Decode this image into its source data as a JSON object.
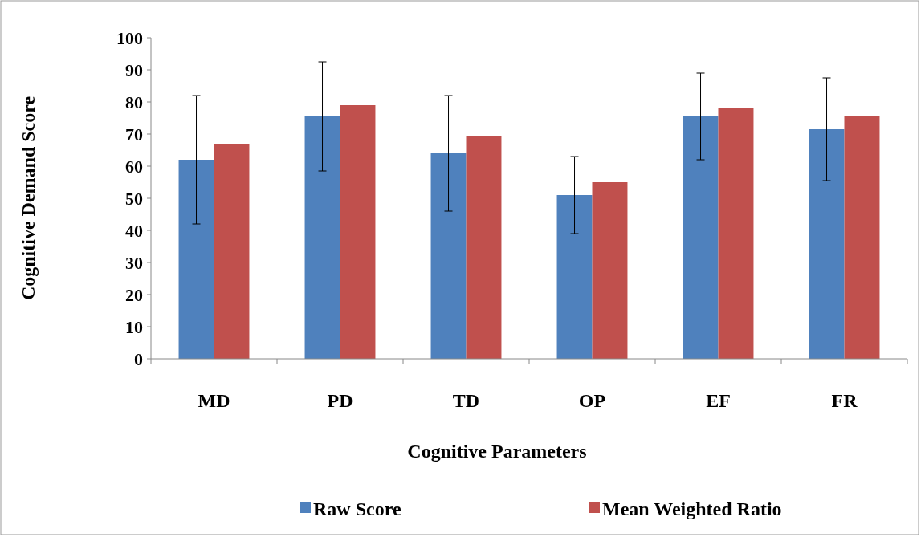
{
  "chart_data": {
    "type": "bar",
    "xlabel": "Cognitive Parameters",
    "ylabel": "Cognitive Demand Score",
    "categories": [
      "MD",
      "PD",
      "TD",
      "OP",
      "EF",
      "FR"
    ],
    "series": [
      {
        "name": "Raw Score",
        "color": "#4f81bd",
        "values": [
          62,
          75.5,
          64,
          51,
          75.5,
          71.5
        ],
        "errors": [
          20,
          17,
          18,
          12,
          13.5,
          16
        ]
      },
      {
        "name": "Mean Weighted Ratio",
        "color": "#c0504d",
        "values": [
          67,
          79,
          69.5,
          55,
          78,
          75.5
        ]
      }
    ],
    "ylim": [
      0,
      100
    ],
    "yticks": [
      0,
      10,
      20,
      30,
      40,
      50,
      60,
      70,
      80,
      90,
      100
    ],
    "legend": "bottom"
  }
}
